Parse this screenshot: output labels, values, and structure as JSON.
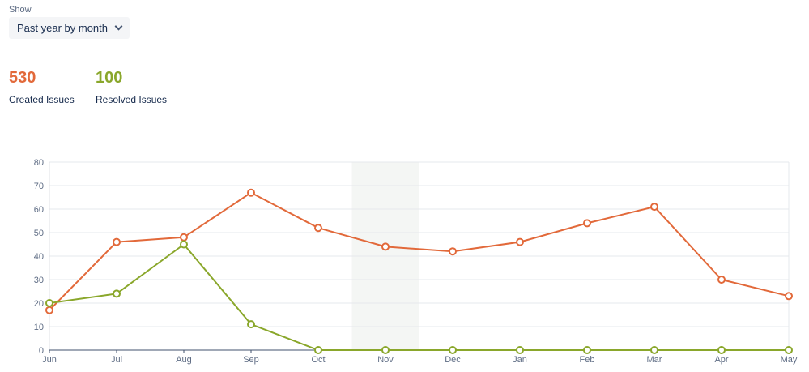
{
  "filter": {
    "label": "Show",
    "selected": "Past year by month"
  },
  "summary": {
    "created": {
      "value": "530",
      "label": "Created Issues",
      "color": "#e2693a"
    },
    "resolved": {
      "value": "100",
      "label": "Resolved Issues",
      "color": "#8aa72b"
    }
  },
  "chart_data": {
    "type": "line",
    "categories": [
      "Jun",
      "Jul",
      "Aug",
      "Sep",
      "Oct",
      "Nov",
      "Dec",
      "Jan",
      "Feb",
      "Mar",
      "Apr",
      "May"
    ],
    "series": [
      {
        "key": "created",
        "color": "#e2693a",
        "values": [
          17,
          46,
          48,
          67,
          52,
          44,
          42,
          46,
          54,
          61,
          30,
          23
        ]
      },
      {
        "key": "resolved",
        "color": "#8aa72b",
        "values": [
          20,
          24,
          45,
          11,
          0,
          0,
          0,
          0,
          0,
          0,
          0,
          0
        ]
      }
    ],
    "ylim": [
      0,
      80
    ],
    "yticks": [
      0,
      10,
      20,
      30,
      40,
      50,
      60,
      70,
      80
    ],
    "highlight_category": "Nov",
    "grid": true
  }
}
